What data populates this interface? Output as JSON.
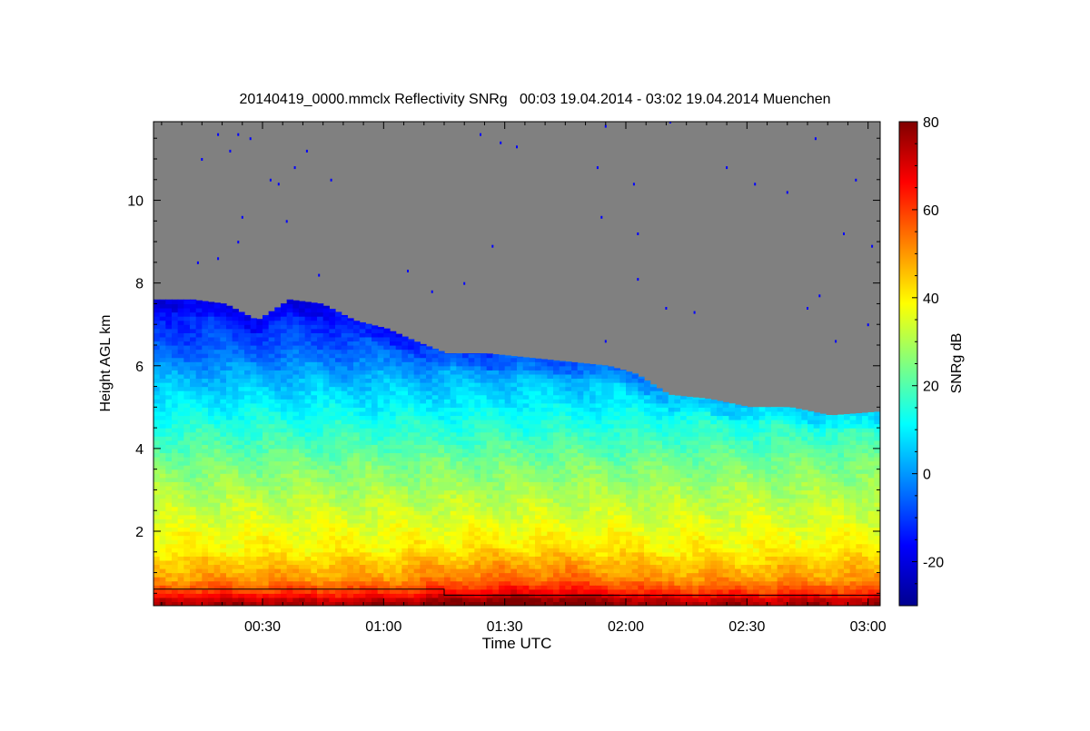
{
  "chart_data": {
    "type": "heatmap",
    "title": "20140419_0000.mmclx Reflectivity SNRg   00:03 19.04.2014 - 03:02 19.04.2014 Muenchen",
    "xlabel": "Time UTC",
    "ylabel": "Height AGL km",
    "colorbar_label": "SNRg dB",
    "x_range_min": [
      3,
      183
    ],
    "y_range_km": [
      0.2,
      11.9
    ],
    "colorbar_range_db": [
      -30,
      80
    ],
    "x_ticks": [
      {
        "minutes": 30,
        "label": "00:30"
      },
      {
        "minutes": 60,
        "label": "01:00"
      },
      {
        "minutes": 90,
        "label": "01:30"
      },
      {
        "minutes": 120,
        "label": "02:00"
      },
      {
        "minutes": 150,
        "label": "02:30"
      },
      {
        "minutes": 180,
        "label": "03:00"
      }
    ],
    "y_ticks": [
      {
        "value": 2,
        "label": "2"
      },
      {
        "value": 4,
        "label": "4"
      },
      {
        "value": 6,
        "label": "6"
      },
      {
        "value": 8,
        "label": "8"
      },
      {
        "value": 10,
        "label": "10"
      }
    ],
    "colorbar_ticks": [
      {
        "value": -20,
        "label": "-20"
      },
      {
        "value": 0,
        "label": "0"
      },
      {
        "value": 20,
        "label": "20"
      },
      {
        "value": 40,
        "label": "40"
      },
      {
        "value": 60,
        "label": "60"
      },
      {
        "value": 80,
        "label": "80"
      }
    ],
    "no_signal_color": "#808080",
    "colormap": [
      "#00008f",
      "#0000ff",
      "#0080ff",
      "#00ffff",
      "#80ff80",
      "#ffff00",
      "#ff8000",
      "#ff0000",
      "#800000"
    ],
    "echo_top_km": [
      {
        "t": 3,
        "h": 7.6
      },
      {
        "t": 12,
        "h": 7.6
      },
      {
        "t": 20,
        "h": 7.5
      },
      {
        "t": 28,
        "h": 7.1
      },
      {
        "t": 36,
        "h": 7.6
      },
      {
        "t": 44,
        "h": 7.5
      },
      {
        "t": 52,
        "h": 7.1
      },
      {
        "t": 60,
        "h": 6.9
      },
      {
        "t": 67,
        "h": 6.6
      },
      {
        "t": 75,
        "h": 6.3
      },
      {
        "t": 85,
        "h": 6.3
      },
      {
        "t": 95,
        "h": 6.2
      },
      {
        "t": 105,
        "h": 6.1
      },
      {
        "t": 115,
        "h": 6.0
      },
      {
        "t": 122,
        "h": 5.8
      },
      {
        "t": 130,
        "h": 5.3
      },
      {
        "t": 140,
        "h": 5.2
      },
      {
        "t": 150,
        "h": 5.0
      },
      {
        "t": 160,
        "h": 5.0
      },
      {
        "t": 170,
        "h": 4.8
      },
      {
        "t": 183,
        "h": 4.9
      }
    ],
    "snr_profile_db": [
      {
        "h_km": 0.25,
        "snr": 75
      },
      {
        "h_km": 0.45,
        "snr": 62
      },
      {
        "h_km": 0.8,
        "snr": 50
      },
      {
        "h_km": 1.5,
        "snr": 40
      },
      {
        "h_km": 2.5,
        "snr": 33
      },
      {
        "h_km": 3.5,
        "snr": 25
      },
      {
        "h_km": 4.5,
        "snr": 15
      },
      {
        "h_km": 5.5,
        "snr": 5
      },
      {
        "h_km": 6.5,
        "snr": -8
      },
      {
        "h_km": 7.5,
        "snr": -15
      }
    ],
    "bright_region": {
      "t_start": 60,
      "t_end": 130,
      "top_km": 2.3,
      "snr_boost": 8
    },
    "ground_line": [
      {
        "t": 3,
        "h": 0.6
      },
      {
        "t": 75,
        "h": 0.6
      },
      {
        "t": 75,
        "h": 0.45
      },
      {
        "t": 183,
        "h": 0.45
      }
    ],
    "clutter_points": [
      {
        "t": 15,
        "h": 11.0
      },
      {
        "t": 19,
        "h": 11.6
      },
      {
        "t": 22,
        "h": 11.2
      },
      {
        "t": 24,
        "h": 11.6
      },
      {
        "t": 27,
        "h": 11.5
      },
      {
        "t": 32,
        "h": 10.5
      },
      {
        "t": 34,
        "h": 10.4
      },
      {
        "t": 38,
        "h": 10.8
      },
      {
        "t": 41,
        "h": 11.2
      },
      {
        "t": 47,
        "h": 10.5
      },
      {
        "t": 25,
        "h": 9.6
      },
      {
        "t": 36,
        "h": 9.5
      },
      {
        "t": 24,
        "h": 9.0
      },
      {
        "t": 14,
        "h": 8.5
      },
      {
        "t": 19,
        "h": 8.6
      },
      {
        "t": 44,
        "h": 8.2
      },
      {
        "t": 66,
        "h": 8.3
      },
      {
        "t": 72,
        "h": 7.8
      },
      {
        "t": 84,
        "h": 11.6
      },
      {
        "t": 89,
        "h": 11.4
      },
      {
        "t": 93,
        "h": 11.3
      },
      {
        "t": 87,
        "h": 8.9
      },
      {
        "t": 80,
        "h": 8.0
      },
      {
        "t": 115,
        "h": 11.8
      },
      {
        "t": 113,
        "h": 10.8
      },
      {
        "t": 122,
        "h": 10.4
      },
      {
        "t": 114,
        "h": 9.6
      },
      {
        "t": 123,
        "h": 9.2
      },
      {
        "t": 131,
        "h": 11.9
      },
      {
        "t": 145,
        "h": 10.8
      },
      {
        "t": 152,
        "h": 10.4
      },
      {
        "t": 167,
        "h": 11.5
      },
      {
        "t": 160,
        "h": 10.2
      },
      {
        "t": 177,
        "h": 10.5
      },
      {
        "t": 174,
        "h": 9.2
      },
      {
        "t": 181,
        "h": 8.9
      },
      {
        "t": 123,
        "h": 8.1
      },
      {
        "t": 130,
        "h": 7.4
      },
      {
        "t": 137,
        "h": 7.3
      },
      {
        "t": 168,
        "h": 7.7
      },
      {
        "t": 165,
        "h": 7.4
      },
      {
        "t": 172,
        "h": 6.6
      },
      {
        "t": 180,
        "h": 7.0
      },
      {
        "t": 115,
        "h": 6.6
      }
    ]
  }
}
